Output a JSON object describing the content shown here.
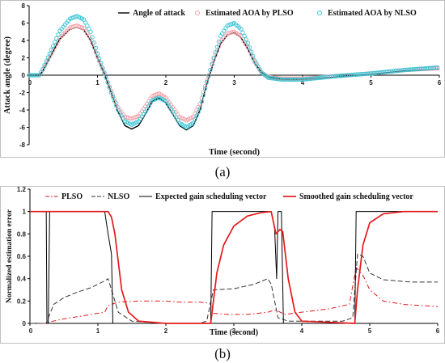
{
  "captions": {
    "a": "(a)",
    "b": "(b)"
  },
  "chart_data": [
    {
      "type": "line",
      "xlabel": "Time (second)",
      "ylabel": "Attack angle (degree)",
      "xlim": [
        0,
        6
      ],
      "ylim": [
        -8,
        8
      ],
      "xticks": [
        "0",
        "1",
        "2",
        "3",
        "4",
        "5",
        "6"
      ],
      "yticks": [
        "-8",
        "-6",
        "-4",
        "-2",
        "0",
        "2",
        "4",
        "6",
        "8"
      ],
      "legend_position": "top-right",
      "grid": false,
      "series": [
        {
          "name": "Angle of attack",
          "style": "line",
          "color": "#000000",
          "points": [
            [
              0,
              0
            ],
            [
              0.15,
              0
            ],
            [
              0.2,
              0.5
            ],
            [
              0.3,
              2.0
            ],
            [
              0.45,
              4.2
            ],
            [
              0.6,
              5.3
            ],
            [
              0.7,
              5.5
            ],
            [
              0.8,
              5.2
            ],
            [
              0.9,
              4.0
            ],
            [
              1.0,
              2.0
            ],
            [
              1.1,
              0.2
            ],
            [
              1.2,
              -2.0
            ],
            [
              1.3,
              -4.2
            ],
            [
              1.4,
              -5.8
            ],
            [
              1.5,
              -6.2
            ],
            [
              1.6,
              -5.8
            ],
            [
              1.7,
              -4.5
            ],
            [
              1.8,
              -3.0
            ],
            [
              1.9,
              -2.6
            ],
            [
              2.0,
              -3.2
            ],
            [
              2.1,
              -4.5
            ],
            [
              2.2,
              -5.8
            ],
            [
              2.3,
              -6.3
            ],
            [
              2.4,
              -5.8
            ],
            [
              2.5,
              -4.0
            ],
            [
              2.6,
              -1.0
            ],
            [
              2.7,
              1.5
            ],
            [
              2.8,
              3.6
            ],
            [
              2.9,
              4.6
            ],
            [
              3.0,
              4.9
            ],
            [
              3.1,
              4.3
            ],
            [
              3.2,
              3.0
            ],
            [
              3.3,
              1.4
            ],
            [
              3.4,
              0.3
            ],
            [
              3.5,
              -0.2
            ],
            [
              3.7,
              -0.5
            ],
            [
              4.0,
              -0.5
            ],
            [
              4.5,
              -0.2
            ],
            [
              5.0,
              0.1
            ],
            [
              5.5,
              0.5
            ],
            [
              6.0,
              0.7
            ]
          ]
        },
        {
          "name": "Estimated AOA by PLSO",
          "style": "circle-markers",
          "color": "#f4a0a6",
          "points": [
            [
              0,
              0
            ],
            [
              0.15,
              0
            ],
            [
              0.2,
              0.6
            ],
            [
              0.3,
              2.1
            ],
            [
              0.45,
              4.3
            ],
            [
              0.6,
              5.5
            ],
            [
              0.7,
              5.7
            ],
            [
              0.8,
              5.4
            ],
            [
              0.9,
              4.2
            ],
            [
              1.0,
              2.1
            ],
            [
              1.1,
              0.2
            ],
            [
              1.2,
              -1.8
            ],
            [
              1.3,
              -3.7
            ],
            [
              1.4,
              -4.8
            ],
            [
              1.5,
              -5.0
            ],
            [
              1.6,
              -4.7
            ],
            [
              1.7,
              -3.6
            ],
            [
              1.8,
              -2.4
            ],
            [
              1.9,
              -2.1
            ],
            [
              2.0,
              -2.6
            ],
            [
              2.1,
              -3.7
            ],
            [
              2.2,
              -4.8
            ],
            [
              2.3,
              -5.2
            ],
            [
              2.4,
              -4.8
            ],
            [
              2.5,
              -3.3
            ],
            [
              2.6,
              -0.6
            ],
            [
              2.7,
              1.8
            ],
            [
              2.8,
              3.8
            ],
            [
              2.9,
              4.8
            ],
            [
              3.0,
              5.0
            ],
            [
              3.1,
              4.5
            ],
            [
              3.2,
              3.2
            ],
            [
              3.3,
              1.5
            ],
            [
              3.4,
              0.3
            ],
            [
              3.5,
              -0.2
            ],
            [
              3.7,
              -0.4
            ],
            [
              4.0,
              -0.4
            ],
            [
              4.5,
              -0.1
            ],
            [
              5.0,
              0.2
            ],
            [
              5.5,
              0.6
            ],
            [
              6.0,
              0.8
            ]
          ]
        },
        {
          "name": "Estimated AOA by NLSO",
          "style": "circle-markers",
          "color": "#39c5d6",
          "points": [
            [
              0,
              0
            ],
            [
              0.15,
              0
            ],
            [
              0.2,
              0.7
            ],
            [
              0.3,
              2.5
            ],
            [
              0.45,
              5.1
            ],
            [
              0.6,
              6.5
            ],
            [
              0.7,
              6.8
            ],
            [
              0.8,
              6.4
            ],
            [
              0.9,
              5.0
            ],
            [
              1.0,
              2.5
            ],
            [
              1.1,
              0.3
            ],
            [
              1.2,
              -2.0
            ],
            [
              1.3,
              -4.0
            ],
            [
              1.4,
              -5.3
            ],
            [
              1.5,
              -5.7
            ],
            [
              1.6,
              -5.3
            ],
            [
              1.7,
              -4.2
            ],
            [
              1.8,
              -2.9
            ],
            [
              1.9,
              -2.6
            ],
            [
              2.0,
              -3.0
            ],
            [
              2.1,
              -4.2
            ],
            [
              2.2,
              -5.5
            ],
            [
              2.3,
              -6.0
            ],
            [
              2.4,
              -5.5
            ],
            [
              2.5,
              -3.8
            ],
            [
              2.6,
              -0.8
            ],
            [
              2.7,
              2.0
            ],
            [
              2.8,
              4.5
            ],
            [
              2.9,
              5.7
            ],
            [
              3.0,
              6.0
            ],
            [
              3.1,
              5.3
            ],
            [
              3.2,
              3.7
            ],
            [
              3.3,
              1.7
            ],
            [
              3.4,
              0.3
            ],
            [
              3.5,
              -0.3
            ],
            [
              3.7,
              -0.5
            ],
            [
              4.0,
              -0.5
            ],
            [
              4.5,
              -0.1
            ],
            [
              5.0,
              0.2
            ],
            [
              5.5,
              0.6
            ],
            [
              6.0,
              0.9
            ]
          ]
        }
      ]
    },
    {
      "type": "line",
      "xlabel": "Time (second)",
      "ylabel": "Normalized estimation error",
      "xlim": [
        0,
        6
      ],
      "ylim": [
        0,
        1.2
      ],
      "xticks": [
        "0",
        "1",
        "2",
        "3",
        "4",
        "5",
        "6"
      ],
      "yticks": [
        "0",
        "0.2",
        "0.4",
        "0.6",
        "0.8",
        "1",
        "1.2"
      ],
      "legend_position": "top",
      "grid": false,
      "series": [
        {
          "name": "PLSO",
          "style": "dash-dot",
          "color": "#e0161a",
          "points": [
            [
              0,
              0
            ],
            [
              0.24,
              0
            ],
            [
              0.26,
              0.01
            ],
            [
              0.5,
              0.04
            ],
            [
              0.9,
              0.08
            ],
            [
              1.1,
              0.1
            ],
            [
              1.15,
              0.16
            ],
            [
              1.3,
              0.19
            ],
            [
              1.6,
              0.2
            ],
            [
              2.0,
              0.2
            ],
            [
              2.2,
              0.19
            ],
            [
              2.5,
              0.19
            ],
            [
              2.65,
              0.18
            ],
            [
              2.7,
              0.09
            ],
            [
              2.9,
              0.08
            ],
            [
              3.2,
              0.08
            ],
            [
              3.5,
              0.1
            ],
            [
              3.6,
              0.12
            ],
            [
              3.65,
              0.11
            ],
            [
              3.75,
              0.08
            ],
            [
              4.0,
              0.1
            ],
            [
              4.4,
              0.13
            ],
            [
              4.7,
              0.17
            ],
            [
              4.8,
              0.5
            ],
            [
              4.9,
              0.43
            ],
            [
              5.0,
              0.3
            ],
            [
              5.2,
              0.2
            ],
            [
              5.5,
              0.17
            ],
            [
              6.0,
              0.15
            ]
          ]
        },
        {
          "name": "NLSO",
          "style": "dash",
          "color": "#333333",
          "points": [
            [
              0,
              0
            ],
            [
              0.24,
              0
            ],
            [
              0.27,
              0.05
            ],
            [
              0.35,
              0.17
            ],
            [
              0.5,
              0.23
            ],
            [
              0.7,
              0.28
            ],
            [
              0.9,
              0.32
            ],
            [
              1.1,
              0.38
            ],
            [
              1.15,
              0.4
            ],
            [
              1.2,
              0.3
            ],
            [
              1.3,
              0.1
            ],
            [
              1.5,
              0.02
            ],
            [
              2.0,
              0.0
            ],
            [
              2.5,
              0.0
            ],
            [
              2.6,
              0.02
            ],
            [
              2.7,
              0.3
            ],
            [
              3.0,
              0.31
            ],
            [
              3.3,
              0.35
            ],
            [
              3.5,
              0.4
            ],
            [
              3.55,
              0.35
            ],
            [
              3.65,
              0.05
            ],
            [
              3.8,
              0.02
            ],
            [
              4.2,
              0.02
            ],
            [
              4.6,
              0.02
            ],
            [
              4.75,
              0.05
            ],
            [
              4.82,
              0.62
            ],
            [
              4.9,
              0.6
            ],
            [
              5.0,
              0.45
            ],
            [
              5.2,
              0.39
            ],
            [
              5.6,
              0.37
            ],
            [
              6.0,
              0.37
            ]
          ]
        },
        {
          "name": "Expected gain scheduling vector",
          "style": "line",
          "color": "#000000",
          "points": [
            [
              0,
              1
            ],
            [
              0.24,
              1
            ],
            [
              0.25,
              0
            ],
            [
              0.27,
              0
            ],
            [
              0.29,
              1
            ],
            [
              1.1,
              1
            ],
            [
              1.15,
              0.8
            ],
            [
              1.2,
              0.62
            ],
            [
              1.22,
              0
            ],
            [
              2.66,
              0
            ],
            [
              2.68,
              1
            ],
            [
              3.55,
              1
            ],
            [
              3.6,
              0.85
            ],
            [
              3.63,
              0.4
            ],
            [
              3.65,
              1
            ],
            [
              3.7,
              1
            ],
            [
              3.73,
              0
            ],
            [
              4.78,
              0
            ],
            [
              4.8,
              1
            ],
            [
              6.0,
              1
            ]
          ]
        },
        {
          "name": "Smoothed gain scheduling vector",
          "style": "line",
          "color": "#e41a1c",
          "points": [
            [
              0,
              1
            ],
            [
              1.15,
              1
            ],
            [
              1.2,
              0.95
            ],
            [
              1.25,
              0.8
            ],
            [
              1.3,
              0.55
            ],
            [
              1.35,
              0.3
            ],
            [
              1.45,
              0.1
            ],
            [
              1.6,
              0.02
            ],
            [
              2.0,
              0.0
            ],
            [
              2.66,
              0.0
            ],
            [
              2.7,
              0.2
            ],
            [
              2.75,
              0.45
            ],
            [
              2.85,
              0.7
            ],
            [
              3.0,
              0.87
            ],
            [
              3.2,
              0.96
            ],
            [
              3.4,
              0.99
            ],
            [
              3.55,
              1.0
            ],
            [
              3.62,
              0.8
            ],
            [
              3.68,
              0.84
            ],
            [
              3.72,
              0.82
            ],
            [
              3.8,
              0.4
            ],
            [
              3.9,
              0.1
            ],
            [
              4.0,
              0.02
            ],
            [
              4.78,
              0.0
            ],
            [
              4.82,
              0.3
            ],
            [
              4.9,
              0.7
            ],
            [
              5.0,
              0.9
            ],
            [
              5.2,
              0.98
            ],
            [
              5.5,
              1.0
            ],
            [
              6.0,
              1.0
            ]
          ]
        }
      ]
    }
  ]
}
